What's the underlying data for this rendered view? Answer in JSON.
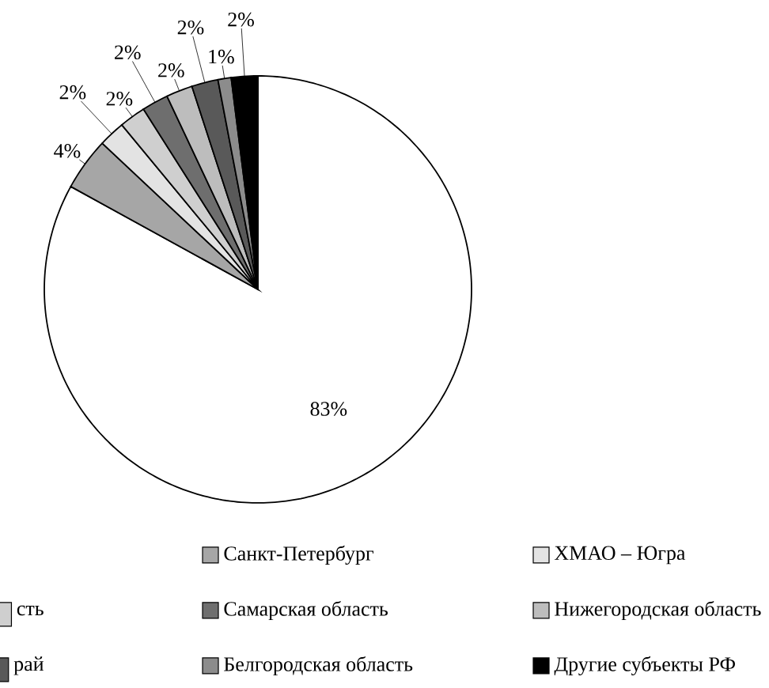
{
  "chart_data": {
    "type": "pie",
    "categories": [
      null,
      "Санкт-Петербург",
      "ХМАО – Югра",
      "сть",
      "Самарская область",
      "Нижегородская область",
      "рай",
      "Белгородская область",
      "Другие субъекты РФ"
    ],
    "values": [
      83,
      4,
      2,
      2,
      2,
      2,
      2,
      1,
      2
    ],
    "value_labels": [
      "83%",
      "4%",
      "2%",
      "2%",
      "2%",
      "2%",
      "2%",
      "1%",
      "2%"
    ],
    "colors": [
      "#ffffff",
      "#a6a6a6",
      "#e3e3e3",
      "#cfcfcf",
      "#6e6e6e",
      "#bdbdbd",
      "#595959",
      "#8c8c8c",
      "#000000"
    ],
    "legend": "bottom"
  }
}
